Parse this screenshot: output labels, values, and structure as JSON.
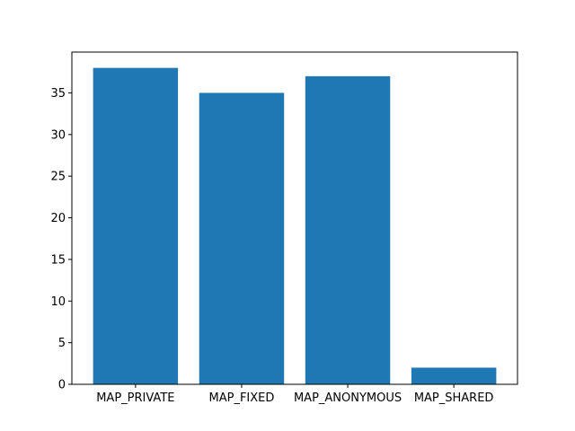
{
  "chart_data": {
    "type": "bar",
    "categories": [
      "MAP_PRIVATE",
      "MAP_FIXED",
      "MAP_ANONYMOUS",
      "MAP_SHARED"
    ],
    "values": [
      38,
      35,
      37,
      2
    ],
    "title": "",
    "xlabel": "",
    "ylabel": "",
    "ylim": [
      0,
      39.9
    ],
    "yticks": [
      0,
      5,
      10,
      15,
      20,
      25,
      30,
      35
    ],
    "grid": false,
    "colors": {
      "bar": "#1f77b4",
      "axis": "#000000",
      "background": "#ffffff"
    }
  }
}
